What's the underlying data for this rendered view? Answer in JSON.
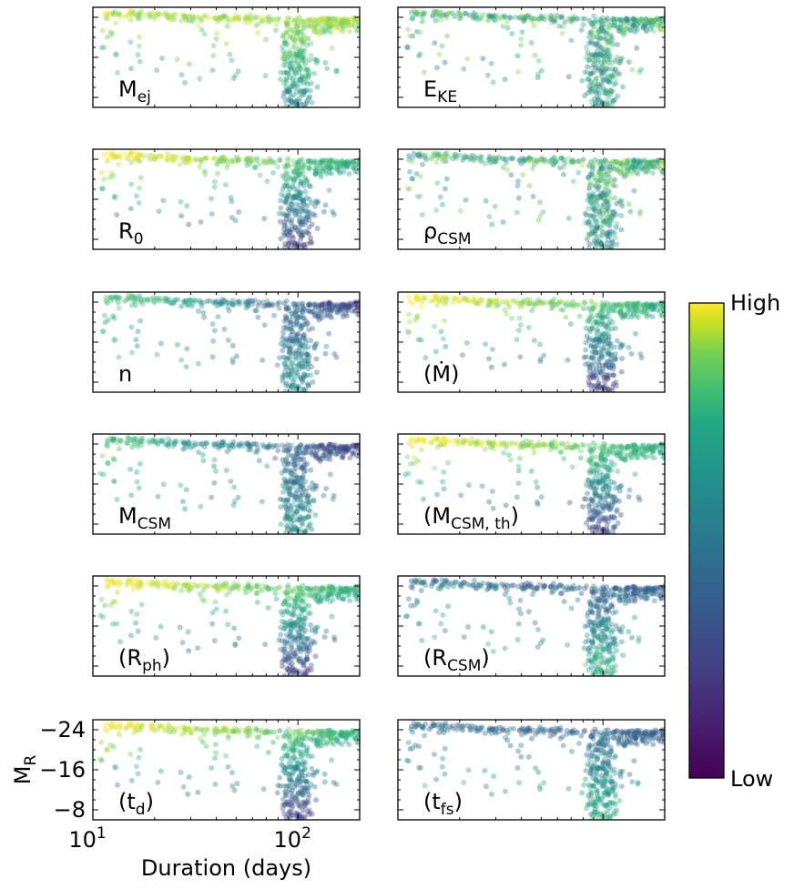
{
  "chart_data": {
    "type": "scatter",
    "title": "",
    "xlabel": "Duration (days)",
    "ylabel": "M_R",
    "ylabel_parts": {
      "main": "M",
      "sub": "R"
    },
    "xscale": "log",
    "xlim": [
      10,
      200
    ],
    "ylim": [
      -6,
      -26
    ],
    "xticks": [
      {
        "value": 10,
        "base": "10",
        "exp": "1"
      },
      {
        "value": 100,
        "base": "10",
        "exp": "2"
      }
    ],
    "yticks": [
      {
        "value": -24,
        "label": "−24"
      },
      {
        "value": -16,
        "label": "−16"
      },
      {
        "value": -8,
        "label": "−8"
      }
    ],
    "colorbar": {
      "high_label": "High",
      "low_label": "Low",
      "colormap": "viridis"
    },
    "panels": [
      {
        "id": "mej",
        "label": "M",
        "sub": "ej",
        "prefix": "",
        "suffix": "",
        "seed": 11,
        "bias": 0.78,
        "mode": "high"
      },
      {
        "id": "eke",
        "label": "E",
        "sub": "KE",
        "prefix": "",
        "suffix": "",
        "seed": 23,
        "bias": 0.52,
        "mode": "mixed"
      },
      {
        "id": "r0",
        "label": "R",
        "sub": "0",
        "prefix": "",
        "suffix": "",
        "seed": 37,
        "bias": 0.72,
        "mode": "bright"
      },
      {
        "id": "rhocsm",
        "label": "ρ",
        "sub": "CSM",
        "prefix": "",
        "suffix": "",
        "seed": 41,
        "bias": 0.62,
        "mode": "mixed"
      },
      {
        "id": "n",
        "label": "n",
        "sub": "",
        "prefix": "",
        "suffix": "",
        "seed": 53,
        "bias": 0.45,
        "mode": "lowlate"
      },
      {
        "id": "mdot",
        "label": "Ṁ",
        "sub": "",
        "prefix": "(",
        "suffix": ")",
        "seed": 67,
        "bias": 0.55,
        "mode": "bright"
      },
      {
        "id": "mcsm",
        "label": "M",
        "sub": "CSM",
        "prefix": "",
        "suffix": "",
        "seed": 71,
        "bias": 0.42,
        "mode": "lowlate"
      },
      {
        "id": "mcsmth",
        "label": "M",
        "sub": "CSM, th",
        "prefix": "(",
        "suffix": ")",
        "seed": 83,
        "bias": 0.68,
        "mode": "bright"
      },
      {
        "id": "rph",
        "label": "R",
        "sub": "ph",
        "prefix": "(",
        "suffix": ")",
        "seed": 97,
        "bias": 0.74,
        "mode": "bright"
      },
      {
        "id": "rcsm",
        "label": "R",
        "sub": "CSM",
        "prefix": "(",
        "suffix": ")",
        "seed": 103,
        "bias": 0.3,
        "mode": "dim"
      },
      {
        "id": "td",
        "label": "t",
        "sub": "d",
        "prefix": "(",
        "suffix": ")",
        "seed": 109,
        "bias": 0.66,
        "mode": "bright"
      },
      {
        "id": "tfs",
        "label": "t",
        "sub": "fs",
        "prefix": "(",
        "suffix": ")",
        "seed": 127,
        "bias": 0.5,
        "mode": "dim"
      }
    ]
  }
}
